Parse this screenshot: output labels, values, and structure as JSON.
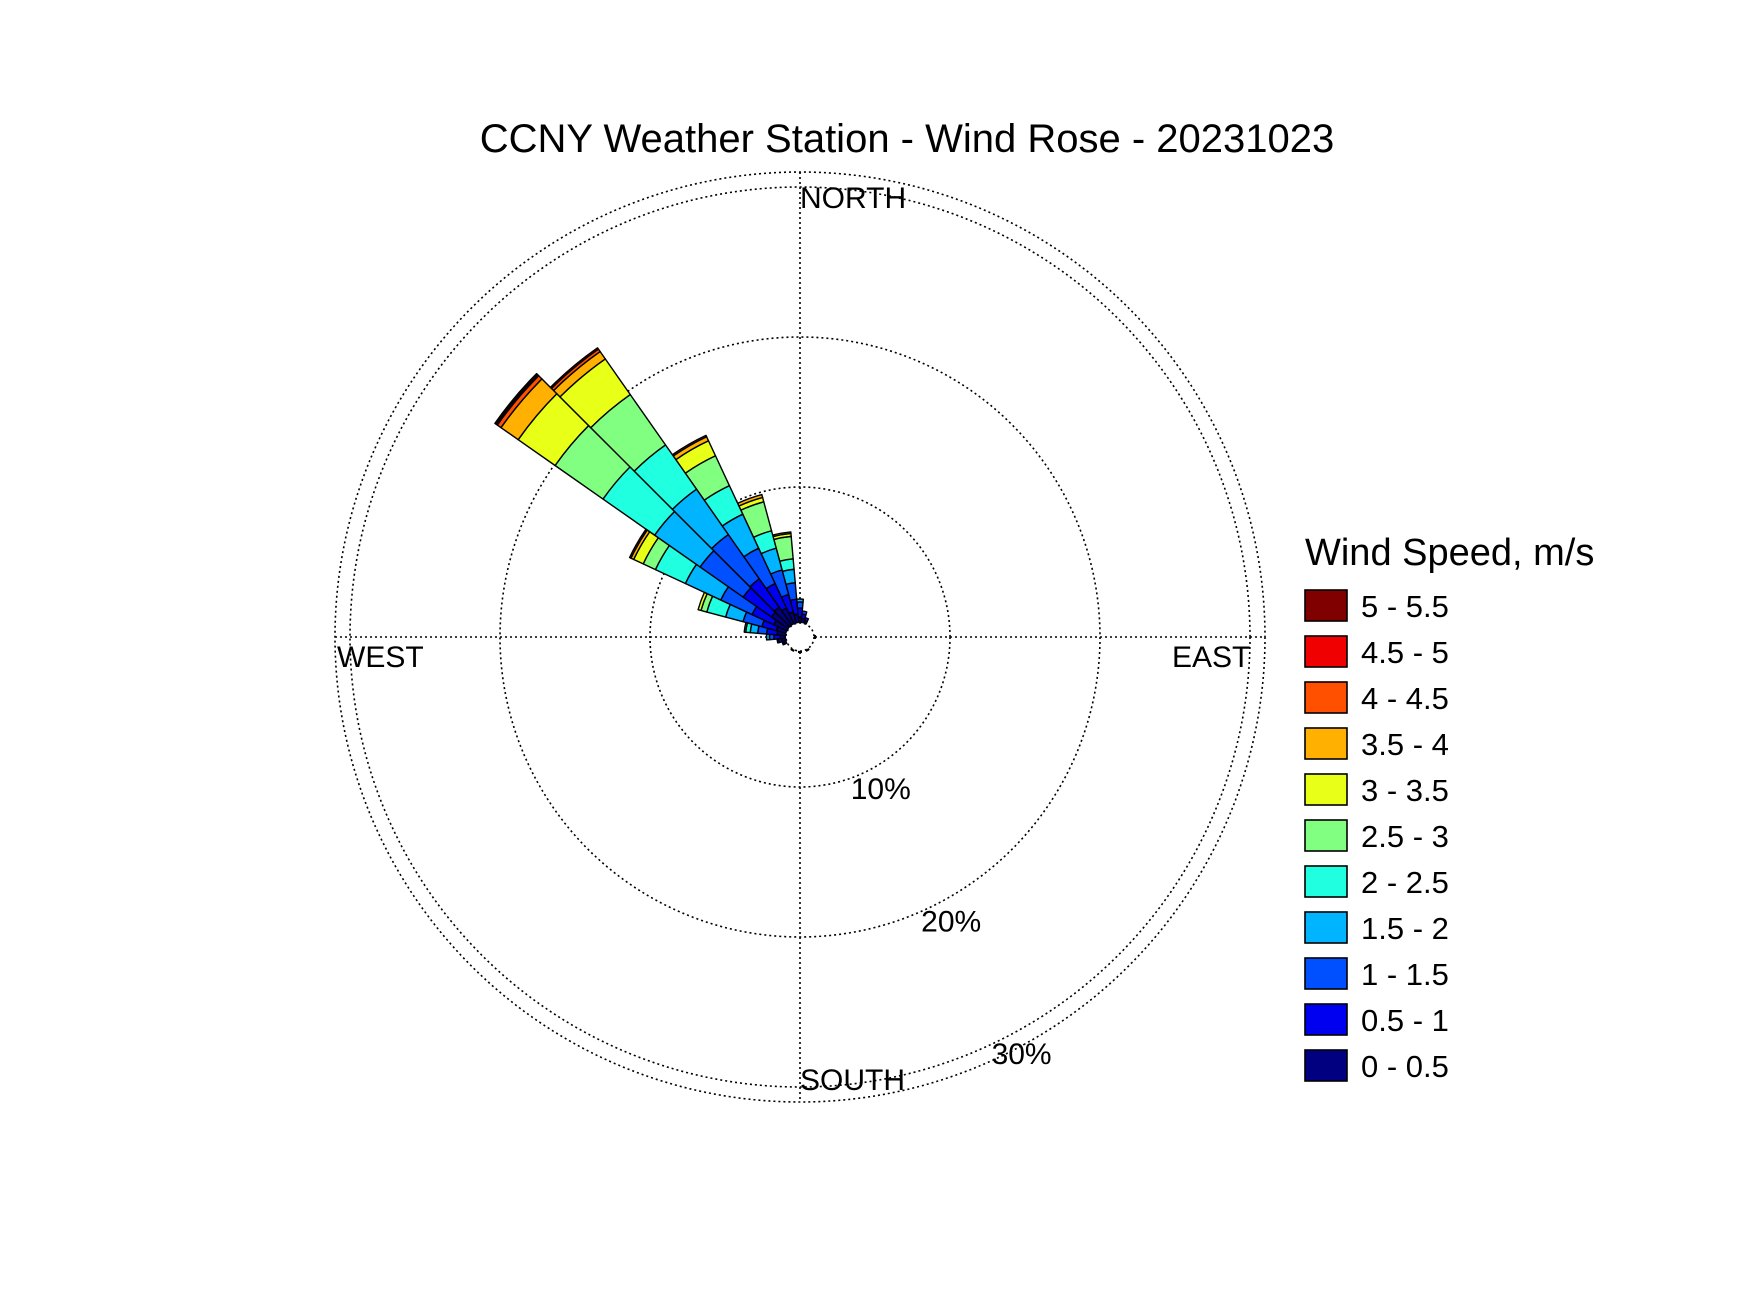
{
  "chart_data": {
    "type": "wind-rose",
    "title": "CCNY Weather Station - Wind Rose - 20231023",
    "legend_title": "Wind Speed, m/s",
    "legend_placement": "right",
    "compass": {
      "north": "NORTH",
      "south": "SOUTH",
      "east": "EAST",
      "west": "WEST"
    },
    "radial_max": 31,
    "rings": [
      {
        "value": 10,
        "label": "10%"
      },
      {
        "value": 20,
        "label": "20%"
      },
      {
        "value": 30,
        "label": "30%"
      }
    ],
    "sector_width_deg": 10,
    "bins": [
      {
        "label": "0 - 0.5",
        "color": "#000080"
      },
      {
        "label": "0.5 - 1",
        "color": "#0000F0"
      },
      {
        "label": "1 - 1.5",
        "color": "#0050FF"
      },
      {
        "label": "1.5 - 2",
        "color": "#00B4FF"
      },
      {
        "label": "2 - 2.5",
        "color": "#20FFE0"
      },
      {
        "label": "2.5 - 3",
        "color": "#80FF80"
      },
      {
        "label": "3 - 3.5",
        "color": "#E8FF18"
      },
      {
        "label": "3.5 - 4",
        "color": "#FFB000"
      },
      {
        "label": "4 - 4.5",
        "color": "#FF5000"
      },
      {
        "label": "4.5 - 5",
        "color": "#F00000"
      },
      {
        "label": "5 - 5.5",
        "color": "#800000"
      }
    ],
    "sectors": [
      {
        "direction_deg": 0,
        "values": [
          0.4,
          0.6,
          0.4,
          0.2
        ]
      },
      {
        "direction_deg": 10,
        "values": [
          0.3,
          0.3,
          0.2
        ]
      },
      {
        "direction_deg": 20,
        "values": [
          0.2,
          0.2
        ]
      },
      {
        "direction_deg": 350,
        "values": [
          0.6,
          1.0,
          1.1,
          0.9,
          0.7,
          1.5,
          0.2,
          0.1
        ]
      },
      {
        "direction_deg": 340,
        "values": [
          0.8,
          1.2,
          1.7,
          1.5,
          1.2,
          2.0,
          0.3,
          0.2
        ]
      },
      {
        "direction_deg": 330,
        "values": [
          1.2,
          1.8,
          2.6,
          2.5,
          2.1,
          2.2,
          1.1,
          0.3,
          0.1
        ]
      },
      {
        "direction_deg": 320,
        "values": [
          1.5,
          2.3,
          3.6,
          3.7,
          3.6,
          4.1,
          2.9,
          0.6,
          0.2,
          0.1
        ]
      },
      {
        "direction_deg": 310,
        "values": [
          1.4,
          2.3,
          3.5,
          3.7,
          4.2,
          3.9,
          3.0,
          1.4,
          0.3,
          0.1,
          0.1
        ]
      },
      {
        "direction_deg": 300,
        "values": [
          1.0,
          1.6,
          2.3,
          2.6,
          2.2,
          0.9,
          0.7,
          0.2,
          0.1
        ]
      },
      {
        "direction_deg": 290,
        "values": [
          0.7,
          1.0,
          1.3,
          1.2,
          1.3,
          0.4,
          0.2
        ]
      },
      {
        "direction_deg": 280,
        "values": [
          0.6,
          0.7,
          0.6,
          0.5,
          0.3,
          0.1
        ]
      },
      {
        "direction_deg": 270,
        "values": [
          0.4,
          0.4,
          0.3,
          0.2
        ]
      },
      {
        "direction_deg": 260,
        "values": [
          0.3,
          0.2,
          0.1
        ]
      },
      {
        "direction_deg": 250,
        "values": [
          0.2,
          0.1
        ]
      },
      {
        "direction_deg": 90,
        "values": [
          0.1
        ]
      },
      {
        "direction_deg": 150,
        "values": [
          0.1
        ]
      },
      {
        "direction_deg": 180,
        "values": [
          0.1
        ]
      },
      {
        "direction_deg": 210,
        "values": [
          0.1
        ]
      }
    ]
  }
}
